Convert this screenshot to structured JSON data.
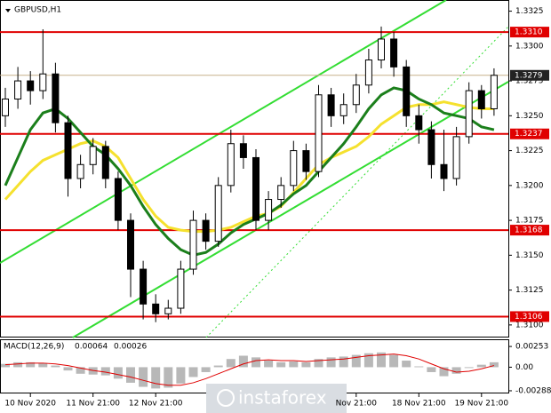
{
  "watermark": "instaforex",
  "chart_data": [
    {
      "type": "candlestick",
      "title": "GBPUSD,H1",
      "categories": [
        null,
        null,
        "10 Nov 2020",
        null,
        null,
        null,
        null,
        "11 Nov 21:00",
        null,
        null,
        null,
        null,
        "12 Nov 21:00",
        null,
        null,
        null,
        null,
        null,
        null,
        null,
        null,
        null,
        null,
        null,
        null,
        null,
        null,
        null,
        "Nov 21:00",
        null,
        null,
        null,
        null,
        "18 Nov 21:00",
        null,
        null,
        null,
        null,
        "19 Nov 21:00",
        null
      ],
      "open": [
        1.325,
        1.3262,
        1.3275,
        1.3268,
        1.328,
        1.3245,
        1.3205,
        1.3215,
        1.3228,
        1.3205,
        1.3175,
        1.314,
        1.3115,
        1.3108,
        1.3112,
        1.314,
        1.3175,
        1.316,
        1.32,
        1.323,
        1.322,
        1.3175,
        1.319,
        1.32,
        1.3225,
        1.321,
        1.3265,
        1.325,
        1.3258,
        1.3272,
        1.329,
        1.3305,
        1.3285,
        1.325,
        1.324,
        1.3215,
        1.3205,
        1.3235,
        1.3268,
        1.3255
      ],
      "high": [
        1.327,
        1.3285,
        1.3282,
        1.3312,
        1.3288,
        1.325,
        1.3222,
        1.3234,
        1.3232,
        1.321,
        1.318,
        1.3146,
        1.3122,
        1.3118,
        1.3146,
        1.3182,
        1.318,
        1.3206,
        1.324,
        1.3236,
        1.3226,
        1.3196,
        1.3206,
        1.3232,
        1.323,
        1.3272,
        1.327,
        1.3266,
        1.328,
        1.3298,
        1.3314,
        1.331,
        1.329,
        1.3258,
        1.3246,
        1.324,
        1.3242,
        1.3274,
        1.3272,
        1.3284
      ],
      "low": [
        1.3242,
        1.3255,
        1.3258,
        1.3262,
        1.3238,
        1.3192,
        1.3198,
        1.3208,
        1.3198,
        1.3168,
        1.312,
        1.3104,
        1.3102,
        1.3104,
        1.3108,
        1.3136,
        1.3154,
        1.3156,
        1.3195,
        1.3212,
        1.3168,
        1.3168,
        1.3184,
        1.3196,
        1.3204,
        1.3206,
        1.3242,
        1.3244,
        1.3252,
        1.3266,
        1.3284,
        1.3278,
        1.3242,
        1.323,
        1.3205,
        1.3196,
        1.32,
        1.323,
        1.3248,
        1.325
      ],
      "close": [
        1.3262,
        1.3275,
        1.3268,
        1.328,
        1.3245,
        1.3205,
        1.3215,
        1.3228,
        1.3205,
        1.3175,
        1.314,
        1.3115,
        1.3108,
        1.3112,
        1.314,
        1.3175,
        1.316,
        1.32,
        1.323,
        1.322,
        1.3175,
        1.319,
        1.32,
        1.3225,
        1.321,
        1.3265,
        1.325,
        1.3258,
        1.3272,
        1.329,
        1.3305,
        1.3285,
        1.325,
        1.324,
        1.3215,
        1.3205,
        1.3235,
        1.3268,
        1.3255,
        1.3279
      ],
      "lines": [
        {
          "color": "#f5e12e",
          "values": [
            1.319,
            1.32,
            1.321,
            1.3218,
            1.3222,
            1.3226,
            1.323,
            1.3232,
            1.3228,
            1.322,
            1.3205,
            1.319,
            1.3178,
            1.317,
            1.3168,
            1.3167,
            1.3167,
            1.3168,
            1.317,
            1.3174,
            1.3178,
            1.318,
            1.3185,
            1.3195,
            1.3205,
            1.3215,
            1.322,
            1.3224,
            1.3228,
            1.3235,
            1.3244,
            1.325,
            1.3256,
            1.3258,
            1.3258,
            1.326,
            1.3258,
            1.3256,
            1.3255,
            1.3255
          ]
        },
        {
          "color": "#1b7f1b",
          "values": [
            1.32,
            1.322,
            1.324,
            1.3252,
            1.3255,
            1.3248,
            1.3238,
            1.3228,
            1.3222,
            1.3212,
            1.32,
            1.3185,
            1.3172,
            1.3162,
            1.3154,
            1.315,
            1.3152,
            1.3158,
            1.3166,
            1.3172,
            1.3176,
            1.318,
            1.3186,
            1.3194,
            1.32,
            1.321,
            1.322,
            1.323,
            1.3242,
            1.3255,
            1.3265,
            1.327,
            1.3268,
            1.3262,
            1.3258,
            1.3252,
            1.325,
            1.3248,
            1.3242,
            1.324
          ]
        }
      ],
      "levels": [
        {
          "value": 1.331,
          "label": "1.3310"
        },
        1.3237,
        1.3168,
        1.3106
      ],
      "level_color": "#e00000",
      "current_price": 1.3279,
      "ylim": [
        1.3091,
        1.3333
      ],
      "yticks": [
        1.3325,
        {
          "value": 1.33,
          "label": "1.3300"
        },
        1.3275,
        {
          "value": 1.325,
          "label": "1.3250"
        },
        1.3225,
        {
          "value": 1.32,
          "label": "1.3200"
        },
        1.3175,
        {
          "value": 1.315,
          "label": "1.3150"
        },
        1.3125,
        {
          "value": 1.31,
          "label": "1.3100"
        }
      ]
    },
    {
      "type": "macd",
      "title": "MACD(12,26,9)",
      "readouts": [
        0.00064,
        0.00026
      ],
      "values": [
        0.0004,
        0.0006,
        0.0006,
        0.0005,
        0.0002,
        -0.0004,
        -0.0008,
        -0.0009,
        -0.001,
        -0.0014,
        -0.0019,
        -0.0024,
        -0.0026,
        -0.0025,
        -0.002,
        -0.0012,
        -0.0006,
        0.0002,
        0.001,
        0.0014,
        0.0012,
        0.0008,
        0.0006,
        0.0007,
        0.0006,
        0.001,
        0.0012,
        0.0013,
        0.0015,
        0.0017,
        0.0018,
        0.0015,
        0.0008,
        0.0001,
        -0.0006,
        -0.0011,
        -0.0008,
        -0.0001,
        0.0003,
        0.0006
      ],
      "color": "#b8b8b8",
      "lines": [
        {
          "color": "#e00000",
          "values": [
            0.0003,
            0.0004,
            0.0005,
            0.0005,
            0.0004,
            0.0002,
            -0.0001,
            -0.0004,
            -0.0006,
            -0.0009,
            -0.0012,
            -0.0016,
            -0.002,
            -0.0022,
            -0.0022,
            -0.0019,
            -0.0014,
            -0.0008,
            -0.0002,
            0.0004,
            0.0008,
            0.0009,
            0.0008,
            0.0008,
            0.0007,
            0.0008,
            0.0009,
            0.001,
            0.0012,
            0.0014,
            0.0015,
            0.0016,
            0.0014,
            0.001,
            0.0004,
            -0.0002,
            -0.0006,
            -0.0005,
            -0.0002,
            0.0002
          ]
        }
      ],
      "ylim": [
        -0.0031,
        0.0033
      ],
      "yticks": [
        0.00253,
        {
          "value": 0,
          "label": "0.00"
        },
        -0.00288
      ]
    }
  ]
}
